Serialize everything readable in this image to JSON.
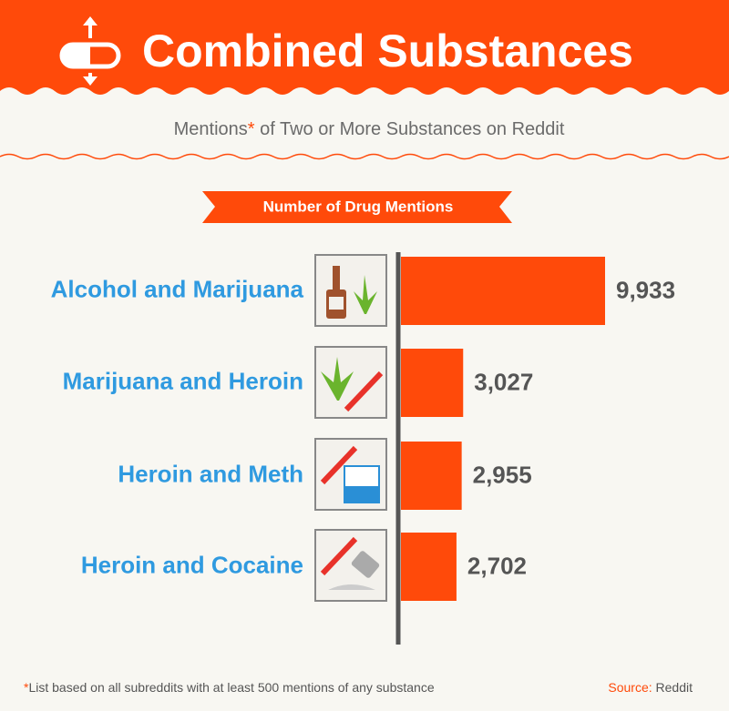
{
  "chart_data": {
    "type": "hbar",
    "title": "Combined Substances",
    "subtitle": [
      "Mentions",
      "*",
      " of Two or More Substances on Reddit"
    ],
    "value_axis_label": "Number of Drug Mentions",
    "categories": [
      "Alcohol and Marijuana",
      "Marijuana and Heroin",
      "Heroin and Meth",
      "Heroin and Cocaine"
    ],
    "values": [
      9933,
      3027,
      2955,
      2702
    ],
    "value_labels": [
      "9,933",
      "3,027",
      "2,955",
      "2,702"
    ],
    "color": "#ff4a0a",
    "footnote": [
      "*",
      "List based on all subreddits with at least 500 mentions of any substance"
    ],
    "source": [
      "Source:",
      " Reddit"
    ]
  }
}
